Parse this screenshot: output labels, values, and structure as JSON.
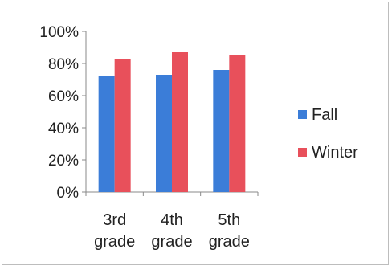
{
  "chart_data": {
    "type": "bar",
    "categories": [
      [
        "3rd",
        "grade"
      ],
      [
        "4th",
        "grade"
      ],
      [
        "5th",
        "grade"
      ]
    ],
    "series": [
      {
        "name": "Fall",
        "values": [
          72,
          73,
          76
        ],
        "color": "#3b7dd8"
      },
      {
        "name": "Winter",
        "values": [
          83,
          87,
          85
        ],
        "color": "#e8505b"
      }
    ],
    "ylim": [
      0,
      100
    ],
    "yticks": [
      "0%",
      "20%",
      "40%",
      "60%",
      "80%",
      "100%"
    ],
    "ytick_values": [
      0,
      20,
      40,
      60,
      80,
      100
    ],
    "grid": false,
    "legend": "right"
  }
}
